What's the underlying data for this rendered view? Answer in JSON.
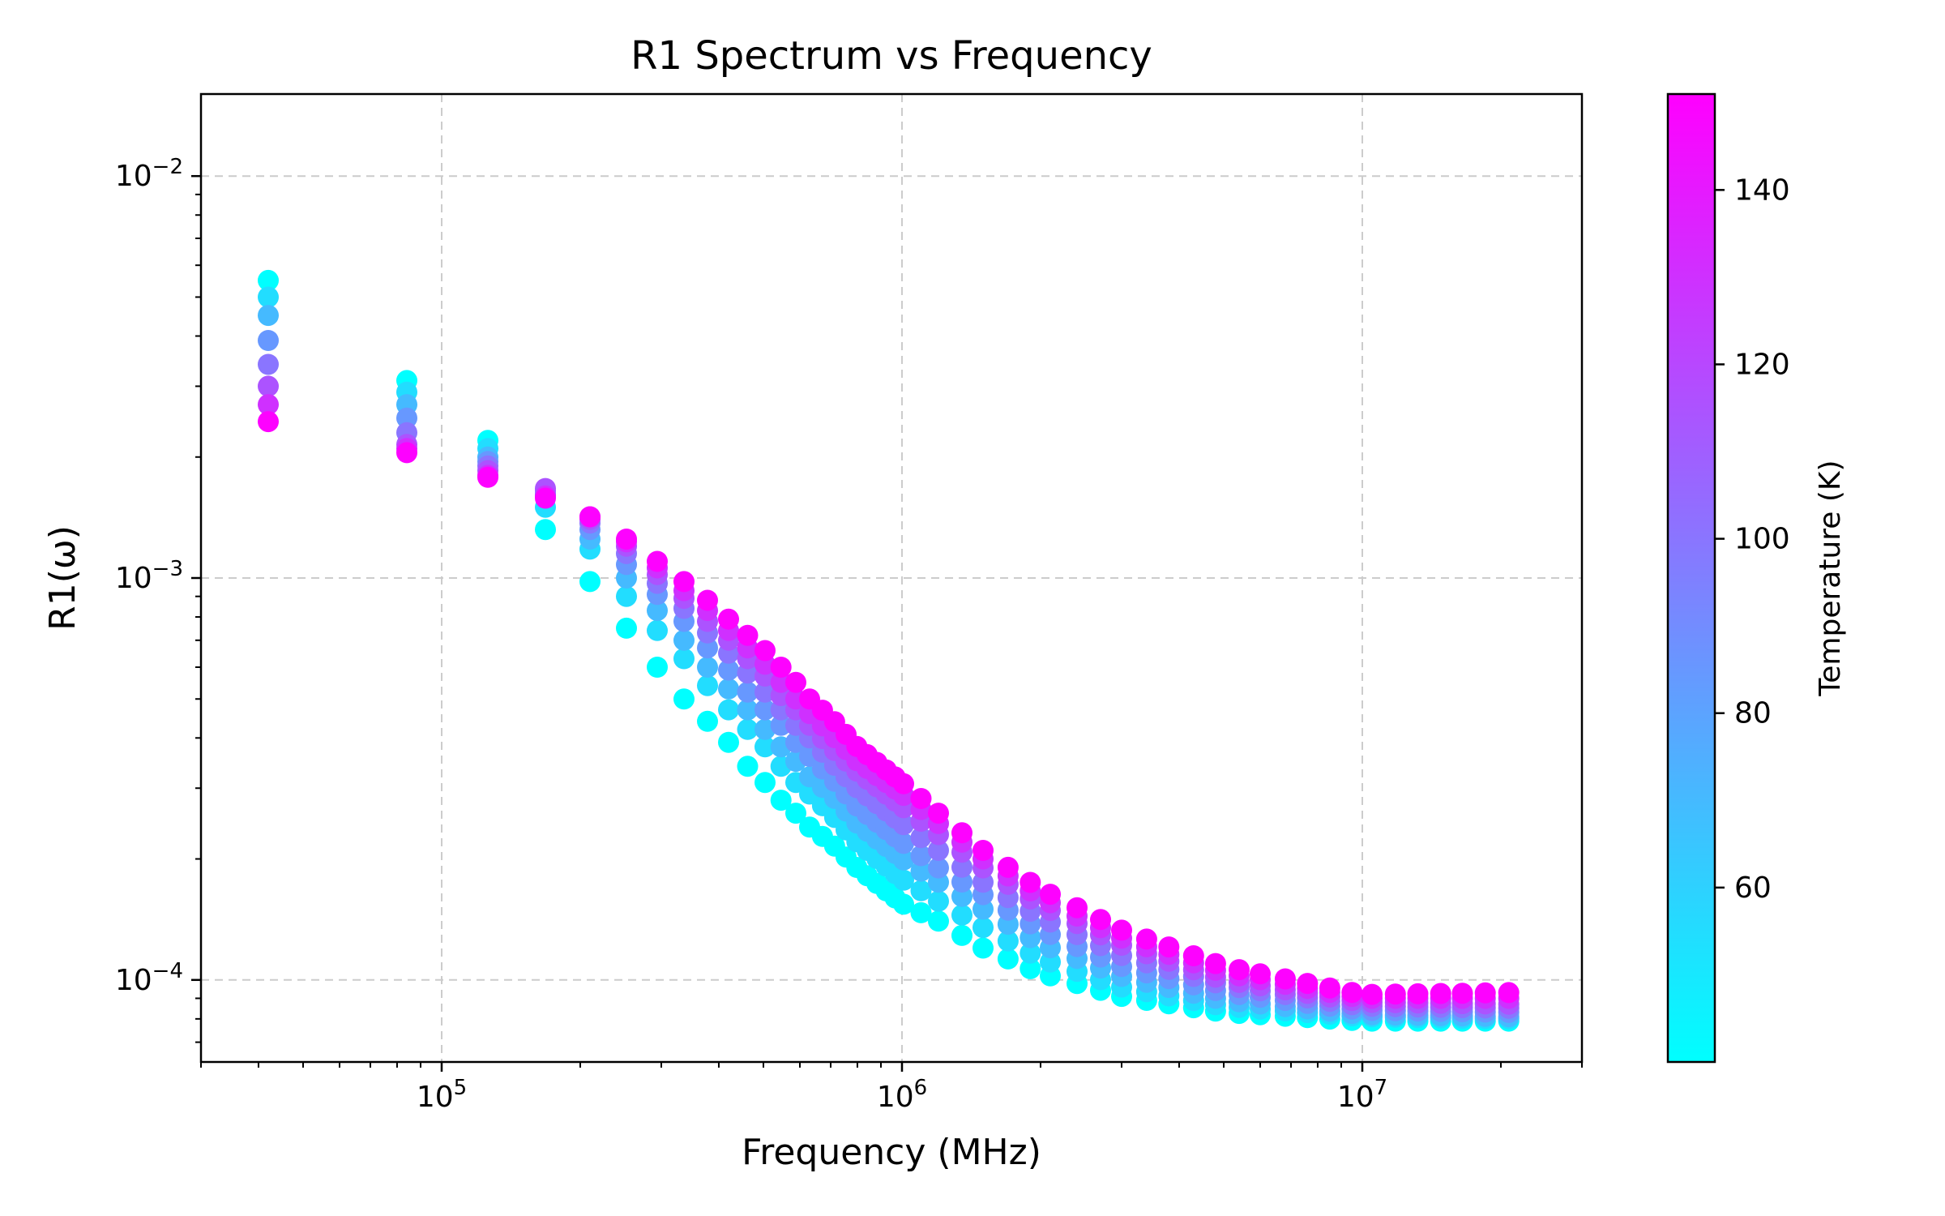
{
  "chart_data": {
    "type": "scatter",
    "title": "R1 Spectrum vs Frequency",
    "xlabel": "Frequency (MHz)",
    "ylabel": "R1(ω)",
    "x_scale": "log",
    "y_scale": "log",
    "xlim": [
      30000,
      30000000
    ],
    "ylim": [
      6.25e-05,
      0.016
    ],
    "grid": true,
    "x_ticks": [
      {
        "value": 100000,
        "base": "10",
        "exp": "5"
      },
      {
        "value": 1000000,
        "base": "10",
        "exp": "6"
      },
      {
        "value": 10000000,
        "base": "10",
        "exp": "7"
      }
    ],
    "y_ticks": [
      {
        "value": 0.0001,
        "base": "10",
        "exp": "−4"
      },
      {
        "value": 0.001,
        "base": "10",
        "exp": "−3"
      },
      {
        "value": 0.01,
        "base": "10",
        "exp": "−2"
      }
    ],
    "colorbar": {
      "label": "Temperature (K)",
      "colormap": "cool",
      "range": [
        40,
        151
      ],
      "ticks": [
        "60",
        "80",
        "100",
        "120",
        "140"
      ],
      "tick_values": [
        60,
        80,
        100,
        120,
        140
      ],
      "color_low": "#00ffff",
      "color_high": "#ff00ff"
    },
    "temperatures": [
      40,
      55,
      70,
      85,
      100,
      115,
      130,
      150
    ],
    "frequencies": [
      42000,
      84000,
      126000,
      168000,
      210000,
      252000,
      294000,
      336000,
      378000,
      420000,
      462000,
      504000,
      546000,
      588000,
      630000,
      672000,
      714000,
      756000,
      798000,
      840000,
      882000,
      924000,
      966000,
      1008000,
      1100000,
      1200000,
      1350000,
      1500000,
      1700000,
      1900000,
      2100000,
      2400000,
      2700000,
      3000000,
      3400000,
      3800000,
      4300000,
      4800000,
      5400000,
      6000000,
      6800000,
      7600000,
      8500000,
      9500000,
      10500000,
      11800000,
      13200000,
      14800000,
      16500000,
      18500000,
      20800000
    ],
    "anchors": [
      [
        [
          42000,
          0.0055
        ],
        [
          84000,
          0.0031
        ],
        [
          126000,
          0.0022
        ],
        [
          168000,
          0.00132
        ],
        [
          210000,
          0.00098
        ],
        [
          252000,
          0.00075
        ],
        [
          294000,
          0.0006
        ],
        [
          336000,
          0.0005
        ],
        [
          378000,
          0.00044
        ],
        [
          420000,
          0.00039
        ],
        [
          462000,
          0.00034
        ],
        [
          504000,
          0.00031
        ],
        [
          546000,
          0.00028
        ],
        [
          588000,
          0.00026
        ],
        [
          630000,
          0.00024
        ],
        [
          700000,
          0.00022
        ],
        [
          800000,
          0.00019
        ],
        [
          1000000,
          0.000155
        ],
        [
          1200000,
          0.00014
        ],
        [
          1500000,
          0.00012
        ],
        [
          2000000,
          0.000104
        ],
        [
          3000000,
          9.1e-05
        ],
        [
          5000000,
          8.3e-05
        ],
        [
          10000000,
          7.9e-05
        ],
        [
          20800000,
          7.9e-05
        ]
      ],
      [
        [
          42000,
          0.005
        ],
        [
          84000,
          0.0029
        ],
        [
          126000,
          0.0021
        ],
        [
          168000,
          0.0015
        ],
        [
          210000,
          0.00118
        ],
        [
          252000,
          0.0009
        ],
        [
          294000,
          0.00074
        ],
        [
          336000,
          0.00063
        ],
        [
          378000,
          0.00054
        ],
        [
          420000,
          0.00047
        ],
        [
          462000,
          0.00042
        ],
        [
          504000,
          0.00038
        ],
        [
          546000,
          0.00034
        ],
        [
          588000,
          0.00031
        ],
        [
          630000,
          0.00029
        ],
        [
          700000,
          0.00026
        ],
        [
          800000,
          0.00022
        ],
        [
          1000000,
          0.000178
        ],
        [
          1200000,
          0.000157
        ],
        [
          1500000,
          0.000135
        ],
        [
          2000000,
          0.000113
        ],
        [
          3000000,
          9.6e-05
        ],
        [
          5000000,
          8.6e-05
        ],
        [
          10000000,
          8.1e-05
        ],
        [
          20800000,
          8e-05
        ]
      ],
      [
        [
          42000,
          0.0045
        ],
        [
          84000,
          0.0027
        ],
        [
          126000,
          0.002
        ],
        [
          168000,
          0.0016
        ],
        [
          210000,
          0.00125
        ],
        [
          252000,
          0.001
        ],
        [
          294000,
          0.00083
        ],
        [
          336000,
          0.0007
        ],
        [
          378000,
          0.0006
        ],
        [
          420000,
          0.00053
        ],
        [
          462000,
          0.00047
        ],
        [
          504000,
          0.00042
        ],
        [
          546000,
          0.00038
        ],
        [
          588000,
          0.00035
        ],
        [
          630000,
          0.00032
        ],
        [
          700000,
          0.00029
        ],
        [
          800000,
          0.000245
        ],
        [
          1000000,
          0.0002
        ],
        [
          1200000,
          0.000175
        ],
        [
          1500000,
          0.00015
        ],
        [
          2000000,
          0.000123
        ],
        [
          3000000,
          0.000102
        ],
        [
          5000000,
          8.9e-05
        ],
        [
          10000000,
          8.2e-05
        ],
        [
          20800000,
          8.1e-05
        ]
      ],
      [
        [
          42000,
          0.0039
        ],
        [
          84000,
          0.0025
        ],
        [
          126000,
          0.00195
        ],
        [
          168000,
          0.00162
        ],
        [
          210000,
          0.00132
        ],
        [
          252000,
          0.00108
        ],
        [
          294000,
          0.00091
        ],
        [
          336000,
          0.00078
        ],
        [
          378000,
          0.00067
        ],
        [
          420000,
          0.00059
        ],
        [
          462000,
          0.00052
        ],
        [
          504000,
          0.00047
        ],
        [
          546000,
          0.00043
        ],
        [
          588000,
          0.00039
        ],
        [
          630000,
          0.00036
        ],
        [
          700000,
          0.00032
        ],
        [
          800000,
          0.00027
        ],
        [
          1000000,
          0.00022
        ],
        [
          1200000,
          0.00019
        ],
        [
          1500000,
          0.000163
        ],
        [
          2000000,
          0.000133
        ],
        [
          3000000,
          0.000108
        ],
        [
          5000000,
          9.3e-05
        ],
        [
          10000000,
          8.4e-05
        ],
        [
          20800000,
          8.3e-05
        ]
      ],
      [
        [
          42000,
          0.0034
        ],
        [
          84000,
          0.0023
        ],
        [
          126000,
          0.0019
        ],
        [
          168000,
          0.00165
        ],
        [
          210000,
          0.00137
        ],
        [
          252000,
          0.00115
        ],
        [
          294000,
          0.00097
        ],
        [
          336000,
          0.00084
        ],
        [
          378000,
          0.00073
        ],
        [
          420000,
          0.00065
        ],
        [
          462000,
          0.00058
        ],
        [
          504000,
          0.00052
        ],
        [
          546000,
          0.00047
        ],
        [
          588000,
          0.00043
        ],
        [
          630000,
          0.0004
        ],
        [
          700000,
          0.00035
        ],
        [
          800000,
          0.0003
        ],
        [
          1000000,
          0.000245
        ],
        [
          1200000,
          0.00021
        ],
        [
          1500000,
          0.000175
        ],
        [
          2000000,
          0.000143
        ],
        [
          3000000,
          0.000115
        ],
        [
          5000000,
          9.7e-05
        ],
        [
          10000000,
          8.6e-05
        ],
        [
          20800000,
          8.5e-05
        ]
      ],
      [
        [
          42000,
          0.003
        ],
        [
          84000,
          0.00215
        ],
        [
          126000,
          0.00185
        ],
        [
          168000,
          0.00167
        ],
        [
          210000,
          0.0014
        ],
        [
          252000,
          0.0012
        ],
        [
          294000,
          0.00102
        ],
        [
          336000,
          0.00089
        ],
        [
          378000,
          0.00078
        ],
        [
          420000,
          0.0007
        ],
        [
          462000,
          0.00063
        ],
        [
          504000,
          0.00057
        ],
        [
          546000,
          0.00051
        ],
        [
          588000,
          0.00047
        ],
        [
          630000,
          0.00043
        ],
        [
          700000,
          0.00038
        ],
        [
          800000,
          0.00033
        ],
        [
          1000000,
          0.00027
        ],
        [
          1200000,
          0.00023
        ],
        [
          1500000,
          0.00019
        ],
        [
          2000000,
          0.000153
        ],
        [
          3000000,
          0.000122
        ],
        [
          5000000,
          0.0001
        ],
        [
          10000000,
          8.8e-05
        ],
        [
          20800000,
          8.7e-05
        ]
      ],
      [
        [
          42000,
          0.0027
        ],
        [
          84000,
          0.0021
        ],
        [
          126000,
          0.0018
        ],
        [
          168000,
          0.0016
        ],
        [
          210000,
          0.00142
        ],
        [
          252000,
          0.00123
        ],
        [
          294000,
          0.00106
        ],
        [
          336000,
          0.00093
        ],
        [
          378000,
          0.00083
        ],
        [
          420000,
          0.00074
        ],
        [
          462000,
          0.00067
        ],
        [
          504000,
          0.00061
        ],
        [
          546000,
          0.00055
        ],
        [
          588000,
          0.0005
        ],
        [
          630000,
          0.00046
        ],
        [
          700000,
          0.00041
        ],
        [
          800000,
          0.00035
        ],
        [
          1000000,
          0.00029
        ],
        [
          1200000,
          0.000245
        ],
        [
          1500000,
          0.0002
        ],
        [
          2000000,
          0.00016
        ],
        [
          3000000,
          0.000127
        ],
        [
          5000000,
          0.000104
        ],
        [
          10000000,
          9e-05
        ],
        [
          20800000,
          9e-05
        ]
      ],
      [
        [
          42000,
          0.00245
        ],
        [
          84000,
          0.00205
        ],
        [
          126000,
          0.00178
        ],
        [
          168000,
          0.00158
        ],
        [
          210000,
          0.00142
        ],
        [
          252000,
          0.00125
        ],
        [
          294000,
          0.0011
        ],
        [
          336000,
          0.00098
        ],
        [
          378000,
          0.00088
        ],
        [
          420000,
          0.00079
        ],
        [
          462000,
          0.00072
        ],
        [
          504000,
          0.00066
        ],
        [
          546000,
          0.0006
        ],
        [
          588000,
          0.00055
        ],
        [
          630000,
          0.0005
        ],
        [
          700000,
          0.00045
        ],
        [
          800000,
          0.00038
        ],
        [
          1000000,
          0.00031
        ],
        [
          1200000,
          0.00026
        ],
        [
          1500000,
          0.00021
        ],
        [
          2000000,
          0.000168
        ],
        [
          3000000,
          0.000133
        ],
        [
          5000000,
          0.000108
        ],
        [
          10000000,
          9.2e-05
        ],
        [
          20800000,
          9.3e-05
        ]
      ]
    ]
  }
}
